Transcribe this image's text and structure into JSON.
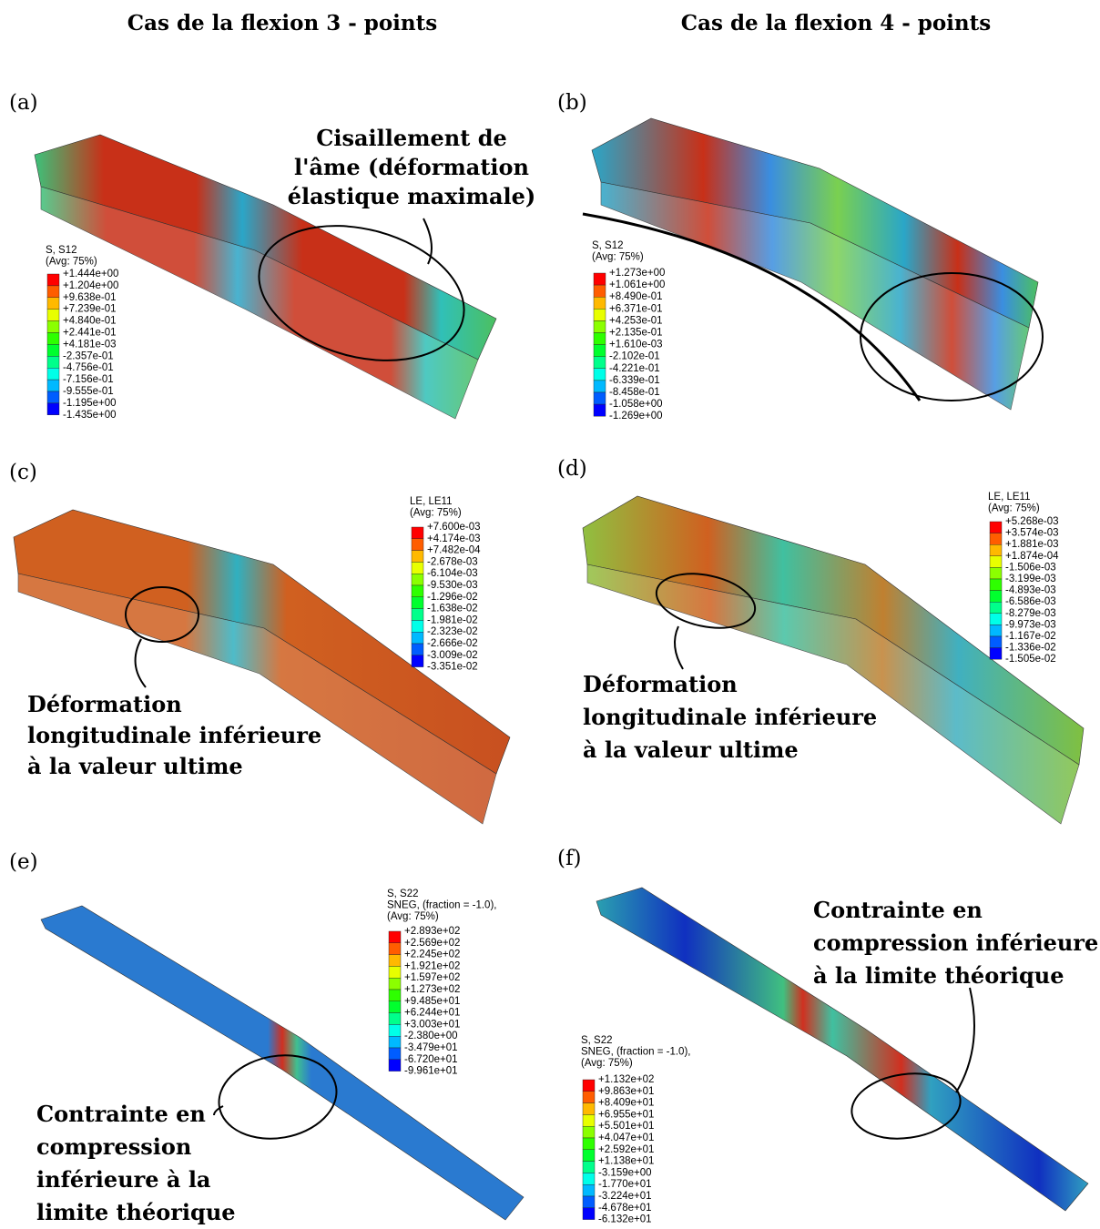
{
  "columns": [
    "Cas de la flexion 3 - points",
    "Cas de la flexion 4 - points"
  ],
  "panels": [
    {
      "label": "(a)",
      "legend": {
        "title": [
          "S, S12",
          "(Avg: 75%)"
        ],
        "values": [
          "+1.444e+00",
          "+1.204e+00",
          "+9.638e-01",
          "+7.239e-01",
          "+4.840e-01",
          "+2.441e-01",
          "+4.181e-03",
          "-2.357e-01",
          "-4.756e-01",
          "-7.156e-01",
          "-9.555e-01",
          "-1.195e+00",
          "-1.435e+00"
        ]
      },
      "annotation": [
        "Cisaillement de",
        "l'âme (déformation",
        "élastique maximale)"
      ]
    },
    {
      "label": "(b)",
      "legend": {
        "title": [
          "S, S12",
          "(Avg: 75%)"
        ],
        "values": [
          "+1.273e+00",
          "+1.061e+00",
          "+8.490e-01",
          "+6.371e-01",
          "+4.253e-01",
          "+2.135e-01",
          "+1.610e-03",
          "-2.102e-01",
          "-4.221e-01",
          "-6.339e-01",
          "-8.458e-01",
          "-1.058e+00",
          "-1.269e+00"
        ]
      }
    },
    {
      "label": "(c)",
      "legend": {
        "title": [
          "LE, LE11",
          "(Avg: 75%)"
        ],
        "values": [
          "+7.600e-03",
          "+4.174e-03",
          "+7.482e-04",
          "-2.678e-03",
          "-6.104e-03",
          "-9.530e-03",
          "-1.296e-02",
          "-1.638e-02",
          "-1.981e-02",
          "-2.323e-02",
          "-2.666e-02",
          "-3.009e-02",
          "-3.351e-02"
        ]
      },
      "annotation": [
        "Déformation",
        "longitudinale inférieure",
        "à la valeur ultime"
      ]
    },
    {
      "label": "(d)",
      "legend": {
        "title": [
          "LE, LE11",
          "(Avg: 75%)"
        ],
        "values": [
          "+5.268e-03",
          "+3.574e-03",
          "+1.881e-03",
          "+1.874e-04",
          "-1.506e-03",
          "-3.199e-03",
          "-4.893e-03",
          "-6.586e-03",
          "-8.279e-03",
          "-9.973e-03",
          "-1.167e-02",
          "-1.336e-02",
          "-1.505e-02"
        ]
      },
      "annotation": [
        "Déformation",
        "longitudinale inférieure",
        "à la valeur ultime"
      ]
    },
    {
      "label": "(e)",
      "legend": {
        "title": [
          "S, S22",
          "SNEG, (fraction = -1.0),",
          "(Avg: 75%)"
        ],
        "values": [
          "+2.893e+02",
          "+2.569e+02",
          "+2.245e+02",
          "+1.921e+02",
          "+1.597e+02",
          "+1.273e+02",
          "+9.485e+01",
          "+6.244e+01",
          "+3.003e+01",
          "-2.380e+00",
          "-3.479e+01",
          "-6.720e+01",
          "-9.961e+01"
        ]
      },
      "annotation": [
        "Contrainte en",
        "compression",
        "inférieure à la",
        "limite théorique"
      ]
    },
    {
      "label": "(f)",
      "legend": {
        "title": [
          "S, S22",
          "SNEG, (fraction = -1.0),",
          "(Avg: 75%)"
        ],
        "values": [
          "+1.132e+02",
          "+9.863e+01",
          "+8.409e+01",
          "+6.955e+01",
          "+5.501e+01",
          "+4.047e+01",
          "+2.592e+01",
          "+1.138e+01",
          "-3.159e+00",
          "-1.770e+01",
          "-3.224e+01",
          "-4.678e+01",
          "-6.132e+01"
        ]
      },
      "annotation": [
        "Contrainte en",
        "compression inférieure",
        "à la limite théorique"
      ]
    }
  ],
  "legend_colors": [
    "#ff0000",
    "#ff5d00",
    "#ffb900",
    "#e8ff00",
    "#8bff00",
    "#2eff00",
    "#00ff2e",
    "#00ff8b",
    "#00ffe8",
    "#00b9ff",
    "#005dff",
    "#0000ff"
  ]
}
